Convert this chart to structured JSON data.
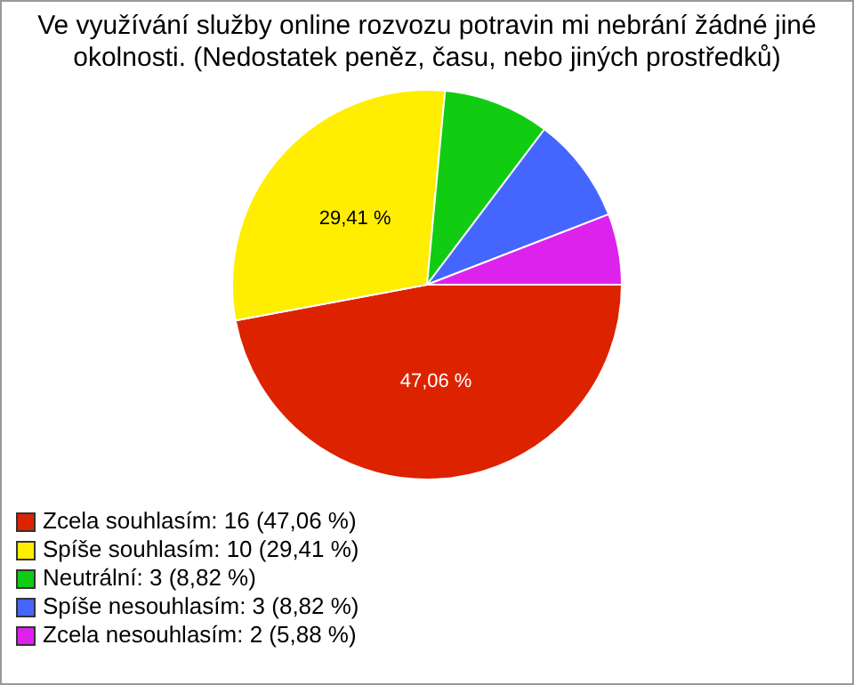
{
  "chart_data": {
    "type": "pie",
    "title": "Ve využívání služby online rozvozu potravin mi nebrání žádné jiné okolnosti. (Nedostatek peněz, času, nebo jiných prostředků)",
    "categories": [
      "Zcela souhlasím: 16 (47,06 %)",
      "Spíše souhlasím: 10 (29,41 %)",
      "Neutrální: 3 (8,82 %)",
      "Spíše nesouhlasím: 3 (8,82 %)",
      "Zcela nesouhlasím: 2 (5,88 %)"
    ],
    "values": [
      47.06,
      29.41,
      8.82,
      8.82,
      5.88
    ],
    "colors": [
      "#dd2200",
      "#ffee00",
      "#11cc11",
      "#4466ff",
      "#dd22ee"
    ],
    "value_labels": [
      "47,06 %",
      "29,41 %",
      null,
      null,
      null
    ],
    "legend": "bottom left"
  }
}
